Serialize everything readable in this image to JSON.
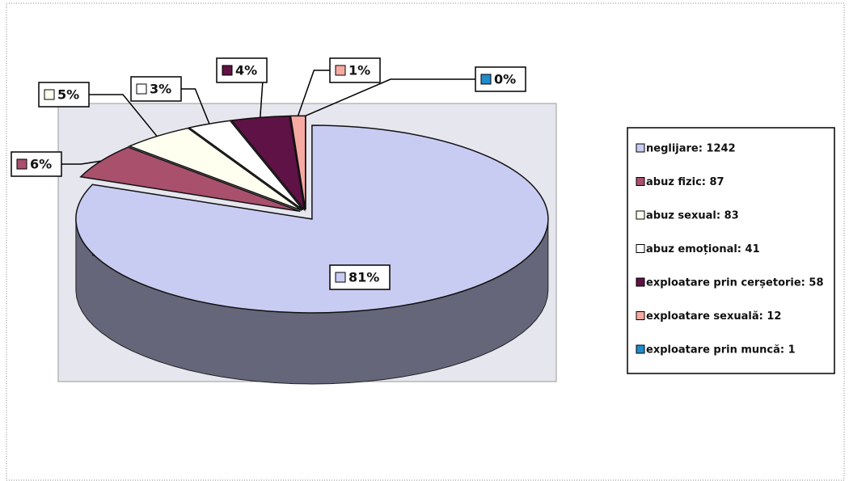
{
  "chart_data": {
    "type": "pie",
    "categories": [
      "neglijare: 1242",
      "abuz fizic: 87",
      "abuz sexual: 83",
      "abuz emoțional: 41",
      "exploatare prin cerșetorie: 58",
      "exploatare sexuală: 12",
      "exploatare prin muncă: 1"
    ],
    "values": [
      81,
      6,
      5,
      3,
      4,
      1,
      0
    ],
    "value_labels": [
      "81%",
      "6%",
      "5%",
      "3%",
      "4%",
      "1%",
      "0%"
    ],
    "colors": [
      "#c9ccf2",
      "#a8506c",
      "#fffff0",
      "#ffffff",
      "#5e1245",
      "#f6aaa2",
      "#1f8ccc"
    ],
    "legend": "right"
  }
}
